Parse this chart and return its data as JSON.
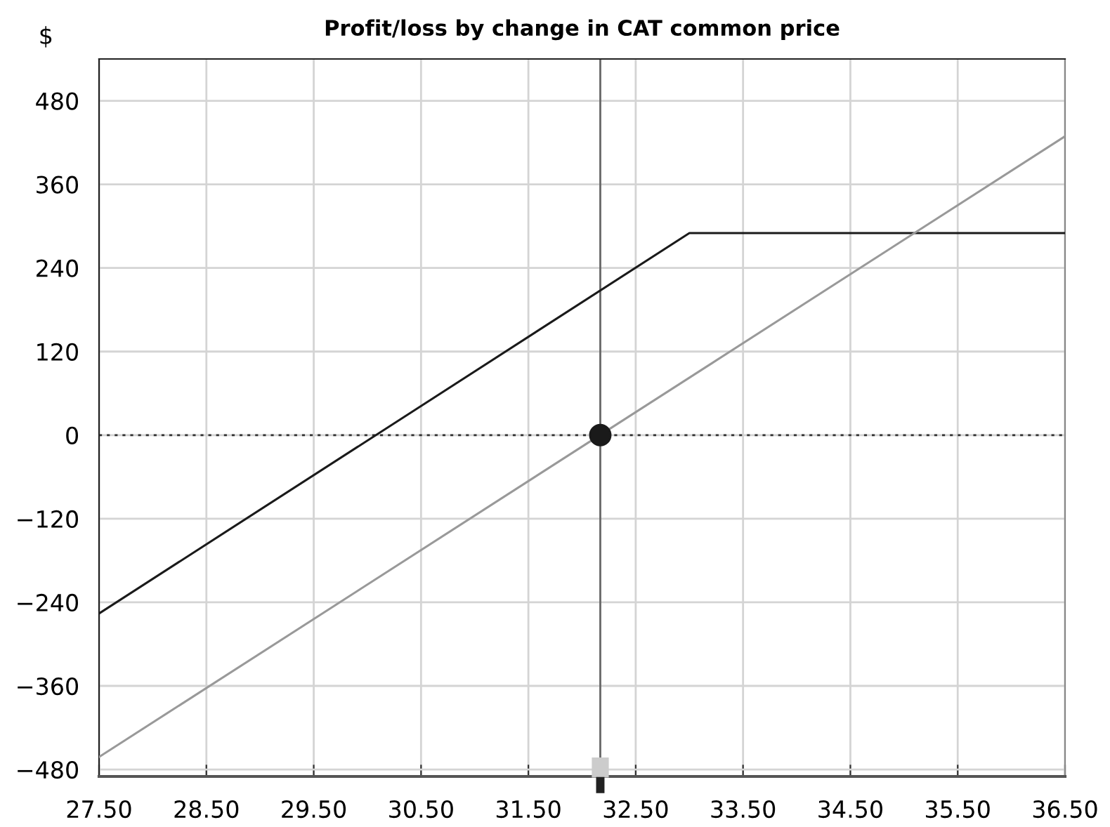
{
  "chart_data": {
    "type": "line",
    "title": "Profit/loss by change in CAT common price",
    "ylabel": "$",
    "series": [
      {
        "color": "#1a1a1a",
        "x": [
          27.5,
          33.0,
          36.5
        ],
        "values": [
          -256,
          290,
          290
        ]
      },
      {
        "color": "#999999",
        "x": [
          27.5,
          36.5
        ],
        "values": [
          -462,
          429
        ]
      },
      {
        "type": "scatter",
        "color": "#1a1a1a",
        "x": [
          32.17
        ],
        "values": [
          0
        ]
      }
    ],
    "xlim": [
      27.5,
      36.5
    ],
    "ylim": [
      -490,
      540
    ],
    "xticks": [
      {
        "value": 27.5,
        "label": "27.50"
      },
      {
        "value": 28.5,
        "label": "28.50"
      },
      {
        "value": 29.5,
        "label": "29.50"
      },
      {
        "value": 30.5,
        "label": "30.50"
      },
      {
        "value": 31.5,
        "label": "31.50"
      },
      {
        "value": 32.5,
        "label": "32.50"
      },
      {
        "value": 33.5,
        "label": "33.50"
      },
      {
        "value": 34.5,
        "label": "34.50"
      },
      {
        "value": 35.5,
        "label": "35.50"
      },
      {
        "value": 36.5,
        "label": "36.50"
      }
    ],
    "yticks": [
      {
        "value": -480,
        "label": "−480"
      },
      {
        "value": -360,
        "label": "−360"
      },
      {
        "value": -240,
        "label": "−240"
      },
      {
        "value": -120,
        "label": "−120"
      },
      0,
      120,
      240,
      360,
      480
    ],
    "ref_lines": [
      {
        "axis": "x",
        "value": 32.17,
        "color": "#666666",
        "line_style": "solid"
      },
      {
        "axis": "y",
        "value": 0,
        "color": "#333333",
        "line_style": "dotted"
      }
    ],
    "grid": true,
    "legend": false
  }
}
